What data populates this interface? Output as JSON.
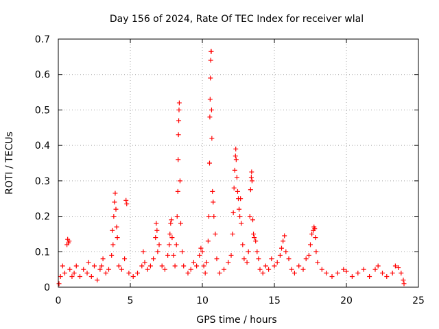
{
  "chart_data": {
    "type": "scatter",
    "title": "Day 156 of 2024, Rate Of TEC Index for receiver wlal",
    "xlabel": "GPS time / hours",
    "ylabel": "ROTI / TECUs",
    "xlim": [
      0,
      25
    ],
    "ylim": [
      0,
      0.7
    ],
    "xticks": [
      0,
      5,
      10,
      15,
      20,
      25
    ],
    "yticks": [
      0,
      0.1,
      0.2,
      0.3,
      0.4,
      0.5,
      0.6,
      0.7
    ],
    "grid": true,
    "marker": "+",
    "color": "#ff0000",
    "series": [
      {
        "name": "ROTI",
        "points": [
          [
            0.05,
            0.01
          ],
          [
            0.15,
            0.03
          ],
          [
            0.3,
            0.06
          ],
          [
            0.45,
            0.04
          ],
          [
            0.6,
            0.12
          ],
          [
            0.65,
            0.135
          ],
          [
            0.7,
            0.125
          ],
          [
            0.75,
            0.13
          ],
          [
            0.8,
            0.05
          ],
          [
            0.95,
            0.03
          ],
          [
            1.1,
            0.04
          ],
          [
            1.25,
            0.06
          ],
          [
            1.5,
            0.03
          ],
          [
            1.75,
            0.05
          ],
          [
            2.0,
            0.04
          ],
          [
            2.1,
            0.07
          ],
          [
            2.3,
            0.03
          ],
          [
            2.5,
            0.06
          ],
          [
            2.7,
            0.02
          ],
          [
            2.9,
            0.05
          ],
          [
            3.0,
            0.06
          ],
          [
            3.1,
            0.08
          ],
          [
            3.3,
            0.04
          ],
          [
            3.5,
            0.05
          ],
          [
            3.7,
            0.09
          ],
          [
            3.75,
            0.16
          ],
          [
            3.8,
            0.12
          ],
          [
            3.85,
            0.2
          ],
          [
            3.9,
            0.24
          ],
          [
            3.95,
            0.265
          ],
          [
            4.0,
            0.22
          ],
          [
            4.05,
            0.17
          ],
          [
            4.1,
            0.14
          ],
          [
            4.2,
            0.06
          ],
          [
            4.4,
            0.05
          ],
          [
            4.6,
            0.08
          ],
          [
            4.7,
            0.245
          ],
          [
            4.75,
            0.235
          ],
          [
            4.9,
            0.04
          ],
          [
            5.2,
            0.03
          ],
          [
            5.5,
            0.04
          ],
          [
            5.8,
            0.06
          ],
          [
            5.9,
            0.1
          ],
          [
            6.0,
            0.07
          ],
          [
            6.2,
            0.05
          ],
          [
            6.4,
            0.06
          ],
          [
            6.6,
            0.08
          ],
          [
            6.75,
            0.14
          ],
          [
            6.8,
            0.18
          ],
          [
            6.85,
            0.16
          ],
          [
            6.9,
            0.1
          ],
          [
            7.0,
            0.12
          ],
          [
            7.2,
            0.06
          ],
          [
            7.4,
            0.05
          ],
          [
            7.6,
            0.09
          ],
          [
            7.7,
            0.12
          ],
          [
            7.75,
            0.15
          ],
          [
            7.8,
            0.18
          ],
          [
            7.85,
            0.19
          ],
          [
            7.9,
            0.14
          ],
          [
            8.0,
            0.09
          ],
          [
            8.1,
            0.06
          ],
          [
            8.2,
            0.12
          ],
          [
            8.25,
            0.2
          ],
          [
            8.3,
            0.27
          ],
          [
            8.32,
            0.36
          ],
          [
            8.34,
            0.43
          ],
          [
            8.36,
            0.47
          ],
          [
            8.38,
            0.5
          ],
          [
            8.4,
            0.52
          ],
          [
            8.45,
            0.3
          ],
          [
            8.5,
            0.18
          ],
          [
            8.6,
            0.1
          ],
          [
            8.7,
            0.06
          ],
          [
            9.0,
            0.04
          ],
          [
            9.2,
            0.05
          ],
          [
            9.4,
            0.07
          ],
          [
            9.6,
            0.06
          ],
          [
            9.8,
            0.09
          ],
          [
            9.9,
            0.11
          ],
          [
            10.0,
            0.1
          ],
          [
            10.1,
            0.06
          ],
          [
            10.2,
            0.04
          ],
          [
            10.3,
            0.07
          ],
          [
            10.4,
            0.13
          ],
          [
            10.45,
            0.2
          ],
          [
            10.5,
            0.35
          ],
          [
            10.52,
            0.48
          ],
          [
            10.54,
            0.53
          ],
          [
            10.56,
            0.59
          ],
          [
            10.58,
            0.64
          ],
          [
            10.6,
            0.665
          ],
          [
            10.62,
            0.665
          ],
          [
            10.64,
            0.5
          ],
          [
            10.66,
            0.42
          ],
          [
            10.7,
            0.27
          ],
          [
            10.75,
            0.24
          ],
          [
            10.8,
            0.2
          ],
          [
            10.9,
            0.15
          ],
          [
            11.0,
            0.08
          ],
          [
            11.2,
            0.04
          ],
          [
            11.5,
            0.05
          ],
          [
            11.8,
            0.07
          ],
          [
            12.0,
            0.09
          ],
          [
            12.1,
            0.15
          ],
          [
            12.15,
            0.21
          ],
          [
            12.2,
            0.28
          ],
          [
            12.25,
            0.33
          ],
          [
            12.3,
            0.37
          ],
          [
            12.32,
            0.39
          ],
          [
            12.35,
            0.36
          ],
          [
            12.4,
            0.31
          ],
          [
            12.45,
            0.27
          ],
          [
            12.5,
            0.25
          ],
          [
            12.55,
            0.22
          ],
          [
            12.6,
            0.2
          ],
          [
            12.65,
            0.25
          ],
          [
            12.7,
            0.18
          ],
          [
            12.8,
            0.12
          ],
          [
            12.9,
            0.08
          ],
          [
            13.1,
            0.07
          ],
          [
            13.2,
            0.1
          ],
          [
            13.3,
            0.2
          ],
          [
            13.35,
            0.275
          ],
          [
            13.4,
            0.31
          ],
          [
            13.42,
            0.325
          ],
          [
            13.45,
            0.3
          ],
          [
            13.5,
            0.19
          ],
          [
            13.55,
            0.15
          ],
          [
            13.6,
            0.14
          ],
          [
            13.7,
            0.13
          ],
          [
            13.8,
            0.1
          ],
          [
            13.9,
            0.08
          ],
          [
            14.0,
            0.05
          ],
          [
            14.2,
            0.04
          ],
          [
            14.4,
            0.06
          ],
          [
            14.6,
            0.05
          ],
          [
            14.8,
            0.08
          ],
          [
            15.0,
            0.06
          ],
          [
            15.2,
            0.07
          ],
          [
            15.4,
            0.09
          ],
          [
            15.5,
            0.11
          ],
          [
            15.6,
            0.13
          ],
          [
            15.7,
            0.145
          ],
          [
            15.8,
            0.1
          ],
          [
            16.0,
            0.08
          ],
          [
            16.2,
            0.05
          ],
          [
            16.4,
            0.04
          ],
          [
            16.7,
            0.06
          ],
          [
            17.0,
            0.05
          ],
          [
            17.2,
            0.08
          ],
          [
            17.4,
            0.09
          ],
          [
            17.5,
            0.12
          ],
          [
            17.6,
            0.15
          ],
          [
            17.7,
            0.16
          ],
          [
            17.75,
            0.17
          ],
          [
            17.8,
            0.165
          ],
          [
            17.85,
            0.14
          ],
          [
            17.9,
            0.1
          ],
          [
            18.0,
            0.07
          ],
          [
            18.3,
            0.05
          ],
          [
            18.6,
            0.04
          ],
          [
            19.0,
            0.03
          ],
          [
            19.4,
            0.04
          ],
          [
            19.8,
            0.05
          ],
          [
            20.0,
            0.045
          ],
          [
            20.4,
            0.03
          ],
          [
            20.8,
            0.04
          ],
          [
            21.2,
            0.05
          ],
          [
            21.6,
            0.03
          ],
          [
            22.0,
            0.05
          ],
          [
            22.2,
            0.06
          ],
          [
            22.5,
            0.04
          ],
          [
            22.8,
            0.03
          ],
          [
            23.2,
            0.04
          ],
          [
            23.4,
            0.06
          ],
          [
            23.6,
            0.055
          ],
          [
            23.8,
            0.04
          ],
          [
            23.95,
            0.02
          ],
          [
            24.0,
            0.01
          ]
        ]
      }
    ]
  }
}
